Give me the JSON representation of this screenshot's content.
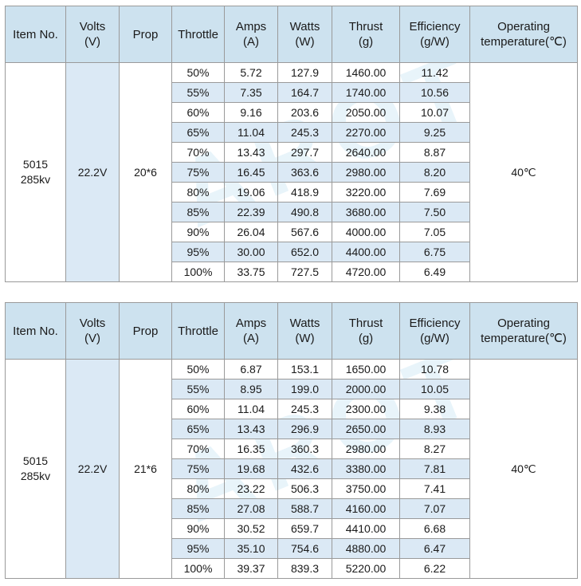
{
  "headers": {
    "item_no": "Item No.",
    "volts_1": "Volts",
    "volts_2": "(V)",
    "prop": "Prop",
    "throttle": "Throttle",
    "amps_1": "Amps",
    "amps_2": "(A)",
    "watts_1": "Watts",
    "watts_2": "(W)",
    "thrust_1": "Thrust",
    "thrust_2": "(g)",
    "eff_1": "Efficiency",
    "eff_2": "(g/W)",
    "temp_1": "Operating",
    "temp_2": "temperature(℃)"
  },
  "watermark": "TAROT",
  "tables": [
    {
      "item_1": "5015",
      "item_2": "285kv",
      "volts": "22.2V",
      "prop": "20*6",
      "temp": "40℃",
      "rows": [
        {
          "throttle": "50%",
          "amps": "5.72",
          "watts": "127.9",
          "thrust": "1460.00",
          "eff": "11.42"
        },
        {
          "throttle": "55%",
          "amps": "7.35",
          "watts": "164.7",
          "thrust": "1740.00",
          "eff": "10.56"
        },
        {
          "throttle": "60%",
          "amps": "9.16",
          "watts": "203.6",
          "thrust": "2050.00",
          "eff": "10.07"
        },
        {
          "throttle": "65%",
          "amps": "11.04",
          "watts": "245.3",
          "thrust": "2270.00",
          "eff": "9.25"
        },
        {
          "throttle": "70%",
          "amps": "13.43",
          "watts": "297.7",
          "thrust": "2640.00",
          "eff": "8.87"
        },
        {
          "throttle": "75%",
          "amps": "16.45",
          "watts": "363.6",
          "thrust": "2980.00",
          "eff": "8.20"
        },
        {
          "throttle": "80%",
          "amps": "19.06",
          "watts": "418.9",
          "thrust": "3220.00",
          "eff": "7.69"
        },
        {
          "throttle": "85%",
          "amps": "22.39",
          "watts": "490.8",
          "thrust": "3680.00",
          "eff": "7.50"
        },
        {
          "throttle": "90%",
          "amps": "26.04",
          "watts": "567.6",
          "thrust": "4000.00",
          "eff": "7.05"
        },
        {
          "throttle": "95%",
          "amps": "30.00",
          "watts": "652.0",
          "thrust": "4400.00",
          "eff": "6.75"
        },
        {
          "throttle": "100%",
          "amps": "33.75",
          "watts": "727.5",
          "thrust": "4720.00",
          "eff": "6.49"
        }
      ]
    },
    {
      "item_1": "5015",
      "item_2": "285kv",
      "volts": "22.2V",
      "prop": "21*6",
      "temp": "40℃",
      "rows": [
        {
          "throttle": "50%",
          "amps": "6.87",
          "watts": "153.1",
          "thrust": "1650.00",
          "eff": "10.78"
        },
        {
          "throttle": "55%",
          "amps": "8.95",
          "watts": "199.0",
          "thrust": "2000.00",
          "eff": "10.05"
        },
        {
          "throttle": "60%",
          "amps": "11.04",
          "watts": "245.3",
          "thrust": "2300.00",
          "eff": "9.38"
        },
        {
          "throttle": "65%",
          "amps": "13.43",
          "watts": "296.9",
          "thrust": "2650.00",
          "eff": "8.93"
        },
        {
          "throttle": "70%",
          "amps": "16.35",
          "watts": "360.3",
          "thrust": "2980.00",
          "eff": "8.27"
        },
        {
          "throttle": "75%",
          "amps": "19.68",
          "watts": "432.6",
          "thrust": "3380.00",
          "eff": "7.81"
        },
        {
          "throttle": "80%",
          "amps": "23.22",
          "watts": "506.3",
          "thrust": "3750.00",
          "eff": "7.41"
        },
        {
          "throttle": "85%",
          "amps": "27.08",
          "watts": "588.7",
          "thrust": "4160.00",
          "eff": "7.07"
        },
        {
          "throttle": "90%",
          "amps": "30.52",
          "watts": "659.7",
          "thrust": "4410.00",
          "eff": "6.68"
        },
        {
          "throttle": "95%",
          "amps": "35.10",
          "watts": "754.6",
          "thrust": "4880.00",
          "eff": "6.47"
        },
        {
          "throttle": "100%",
          "amps": "39.37",
          "watts": "839.3",
          "thrust": "5220.00",
          "eff": "6.22"
        }
      ]
    }
  ]
}
